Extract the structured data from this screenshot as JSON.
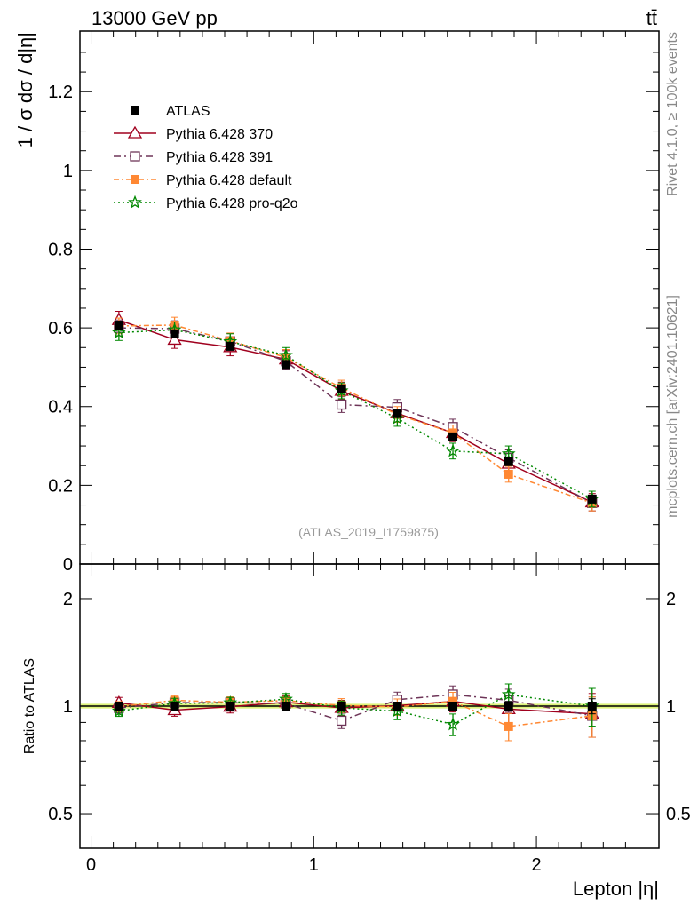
{
  "chart_data": {
    "type": "line",
    "title_left": "13000 GeV pp",
    "title_right": "tt̄",
    "xlabel": "Lepton |η|",
    "ylabel": "1 / σ  dσ / d|η|",
    "ratio_ylabel": "Ratio to ATLAS",
    "watermark": "(ATLAS_2019_I1759875)",
    "side_text_top": "Rivet 4.1.0, ≥ 100k events",
    "side_text_bottom": "mcplots.cern.ch [arXiv:2401.10621]",
    "xlim": [
      -0.05,
      2.55
    ],
    "ylim": [
      0,
      1.354
    ],
    "ratio_ylim": [
      0.4,
      2.5
    ],
    "ratio_scale": "log",
    "x_ticks": [
      "0",
      "1",
      "2"
    ],
    "y_ticks": [
      "0",
      "0.2",
      "0.4",
      "0.6",
      "0.8",
      "1",
      "1.2"
    ],
    "ratio_ticks": [
      "0.5",
      "1",
      "2"
    ],
    "legend_position": "top-left",
    "x": [
      0.125,
      0.375,
      0.625,
      0.875,
      1.125,
      1.375,
      1.625,
      1.875,
      2.25
    ],
    "series": [
      {
        "name": "ATLAS",
        "color": "#000000",
        "marker": "square-filled",
        "dash": "",
        "err": 0.008,
        "values": [
          0.607,
          0.585,
          0.553,
          0.507,
          0.445,
          0.382,
          0.323,
          0.26,
          0.165
        ]
      },
      {
        "name": "Pythia 6.428 370",
        "color": "#a0001e",
        "marker": "triangle-open",
        "dash": "",
        "err": 0.022,
        "values": [
          0.62,
          0.57,
          0.551,
          0.52,
          0.44,
          0.383,
          0.333,
          0.255,
          0.157
        ]
      },
      {
        "name": "Pythia 6.428 391",
        "color": "#6e3558",
        "marker": "square-open",
        "dash": "8,4,2,4",
        "err": 0.02,
        "values": [
          0.6,
          0.598,
          0.566,
          0.515,
          0.405,
          0.398,
          0.348,
          0.27,
          0.155
        ]
      },
      {
        "name": "Pythia 6.428 default",
        "color": "#ff8833",
        "marker": "square-filled",
        "dash": "6,3,2,3",
        "err": 0.02,
        "values": [
          0.605,
          0.607,
          0.567,
          0.525,
          0.447,
          0.38,
          0.333,
          0.228,
          0.155
        ]
      },
      {
        "name": "Pythia 6.428 pro-q2o",
        "color": "#008800",
        "marker": "star-open",
        "dash": "2,3",
        "err": 0.02,
        "values": [
          0.588,
          0.595,
          0.565,
          0.53,
          0.44,
          0.37,
          0.287,
          0.28,
          0.165
        ]
      }
    ]
  }
}
